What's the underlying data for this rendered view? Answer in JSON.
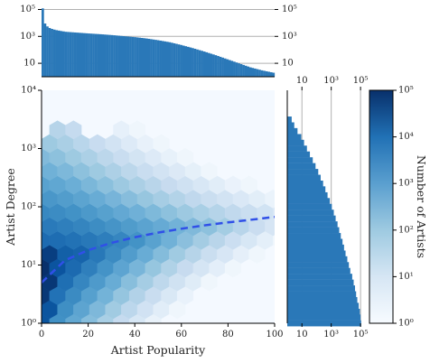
{
  "chart_data": [
    {
      "type": "bar",
      "panel": "top-marginal",
      "title": "",
      "xlabel": "",
      "ylabel": "",
      "yscale": "log",
      "ylim": [
        1,
        200000
      ],
      "y_ticks": [
        {
          "value": 10,
          "label": "10"
        },
        {
          "value": 1000,
          "label": "10³"
        },
        {
          "value": 100000,
          "label": "10⁵"
        }
      ],
      "grid": true,
      "color": "#2a78b8",
      "x": [
        0,
        1,
        2,
        3,
        4,
        5,
        6,
        7,
        8,
        9,
        10,
        15,
        20,
        25,
        30,
        35,
        40,
        45,
        50,
        55,
        60,
        65,
        70,
        75,
        80,
        85,
        90,
        95,
        100
      ],
      "values": [
        120000,
        9000,
        5500,
        4200,
        3600,
        3200,
        2900,
        2700,
        2500,
        2350,
        2200,
        1900,
        1650,
        1450,
        1250,
        1050,
        880,
        700,
        520,
        370,
        230,
        135,
        75,
        40,
        20,
        10,
        5,
        3,
        2
      ]
    },
    {
      "type": "heatmap",
      "subtype": "hexbin",
      "panel": "main",
      "title": "",
      "xlabel": "Artist Popularity",
      "ylabel": "Artist Degree",
      "xlim": [
        0,
        100
      ],
      "yscale": "log",
      "ylim": [
        1,
        10000
      ],
      "x_ticks": [
        {
          "value": 0,
          "label": "0"
        },
        {
          "value": 20,
          "label": "20"
        },
        {
          "value": 40,
          "label": "40"
        },
        {
          "value": 60,
          "label": "60"
        },
        {
          "value": 80,
          "label": "80"
        },
        {
          "value": 100,
          "label": "100"
        }
      ],
      "y_ticks": [
        {
          "value": 1,
          "label": "10⁰"
        },
        {
          "value": 10,
          "label": "10¹"
        },
        {
          "value": 100,
          "label": "10²"
        },
        {
          "value": 1000,
          "label": "10³"
        },
        {
          "value": 10000,
          "label": "10⁴"
        }
      ],
      "colormap": "Blues",
      "color_scale": "log",
      "background": "#f4f9ff",
      "fit_line": {
        "style": "dashed",
        "color": "#3050e8",
        "x": [
          0,
          10,
          20,
          30,
          40,
          50,
          60,
          70,
          80,
          90,
          100
        ],
        "y": [
          5,
          12,
          18,
          24,
          30,
          36,
          42,
          48,
          54,
          60,
          67
        ]
      }
    },
    {
      "type": "bar",
      "orientation": "horizontal",
      "panel": "right-marginal",
      "title": "",
      "xscale": "log",
      "xlim": [
        1,
        200000
      ],
      "x_ticks": [
        {
          "value": 10,
          "label": "10"
        },
        {
          "value": 1000,
          "label": "10³"
        },
        {
          "value": 100000,
          "label": "10⁵"
        }
      ],
      "grid": true,
      "color": "#2a78b8",
      "degree": [
        1,
        1.26,
        1.58,
        2,
        2.51,
        3.16,
        3.98,
        5.01,
        6.31,
        7.94,
        10,
        12.6,
        15.8,
        20,
        25.1,
        31.6,
        39.8,
        50.1,
        63.1,
        79.4,
        100,
        126,
        158,
        200,
        251,
        316,
        398,
        501,
        631,
        794,
        1000,
        1260,
        1580,
        2000,
        2510,
        3160
      ],
      "values": [
        110000,
        100000,
        90000,
        75000,
        60000,
        50000,
        42000,
        34000,
        27000,
        20000,
        16000,
        12500,
        9500,
        7500,
        5900,
        4500,
        3500,
        2700,
        2000,
        1500,
        1100,
        800,
        560,
        400,
        280,
        190,
        130,
        85,
        55,
        35,
        22,
        14,
        9,
        5,
        3,
        2
      ]
    },
    {
      "type": "colorbar",
      "panel": "colorbar",
      "label": "Number of Artists",
      "scale": "log",
      "range": [
        1,
        100000
      ],
      "colormap": "Blues",
      "ticks": [
        {
          "value": 1,
          "label": "10⁰"
        },
        {
          "value": 10,
          "label": "10¹"
        },
        {
          "value": 100,
          "label": "10²"
        },
        {
          "value": 1000,
          "label": "10³"
        },
        {
          "value": 10000,
          "label": "10⁴"
        },
        {
          "value": 100000,
          "label": "10⁵"
        }
      ]
    }
  ]
}
